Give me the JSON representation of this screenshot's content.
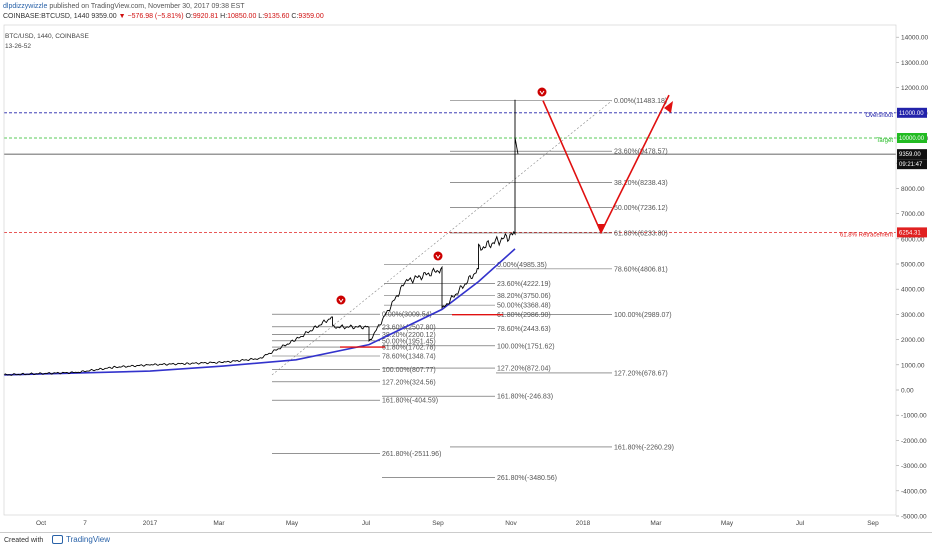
{
  "header": {
    "author": "dlpdizzywizzle",
    "published": "published on TradingView.com, November 30, 2017 09:38 EST",
    "symbol": "COINBASE:BTCUSD, 1440",
    "last": "9359.00",
    "change": "−576.98 (−5.81%)",
    "open_label": "O:",
    "open": "9920.81",
    "high_label": "H:",
    "high": "10850.00",
    "low_label": "L:",
    "low": "9135.60",
    "close_label": "C:",
    "close": "9359.00",
    "legend_title": "BTC/USD, 1440, COINBASE",
    "legend_sub": "13-26-52"
  },
  "footer": {
    "created": "Created with",
    "brand": "TradingView"
  },
  "colors": {
    "price": "#000000",
    "ma": "#3333cc",
    "arrow": "#e01010",
    "overshoot": "#2222aa",
    "target": "#22bb22",
    "retracement": "#e02020",
    "fib": "#555555",
    "up_mark": "#cc0000"
  },
  "chart_data": {
    "type": "line",
    "xlabel": "",
    "ylabel": "",
    "ylim": [
      -5000,
      15000
    ],
    "grid": false,
    "x_ticks": [
      "Oct",
      "7",
      "2017",
      "Mar",
      "May",
      "Jul",
      "Sep",
      "Nov",
      "2018",
      "Mar",
      "May",
      "Jul",
      "Sep"
    ],
    "y_ticks": [
      "14000.00",
      "13000.00",
      "12000.00",
      "11000.00",
      "10000.00",
      "9000.00",
      "8000.00",
      "7000.00",
      "6000.00",
      "5000.00",
      "4000.00",
      "3000.00",
      "2000.00",
      "1000.00",
      "0.00",
      "-1000.00",
      "-2000.00",
      "-3000.00",
      "-4000.00",
      "-5000.00"
    ],
    "series": [
      {
        "values_x": [
          "2016-09",
          "2016-11",
          "2016-12",
          "2017-01",
          "2017-02",
          "2017-03",
          "2017-04",
          "2017-05",
          "2017-06",
          "2017-06",
          "2017-07",
          "2017-07",
          "2017-08",
          "2017-09",
          "2017-09",
          "2017-10",
          "2017-10",
          "2017-11",
          "2017-11",
          "2017-11",
          "2017-11"
        ],
        "values": [
          600,
          700,
          900,
          1000,
          1050,
          1100,
          1250,
          2000,
          2900,
          2500,
          2500,
          1900,
          4300,
          4800,
          3200,
          4800,
          5600,
          6200,
          8000,
          11400,
          9359
        ]
      },
      {
        "values_x": [
          "2016-09",
          "2017-01",
          "2017-03",
          "2017-05",
          "2017-07",
          "2017-09",
          "2017-10",
          "2017-11"
        ],
        "values": [
          600,
          750,
          950,
          1200,
          1800,
          3200,
          4300,
          5600
        ]
      }
    ],
    "horizontal_levels": [
      {
        "value": 11000.0,
        "label": "Overshoot",
        "tag": "11000.00"
      },
      {
        "value": 10000.0,
        "label": "Target",
        "tag": "10000.00"
      },
      {
        "value": 9359.0,
        "label": "",
        "tag": "9359.00"
      },
      {
        "value": 6254.31,
        "label": "61.8% Retracement",
        "tag": "6254.31"
      }
    ],
    "current_time_tag": "09:21:47",
    "projection": [
      {
        "date": "2017-11-25",
        "value": 11483
      },
      {
        "date": "2018-01-25",
        "value": 6254
      },
      {
        "date": "2018-03-15",
        "value": 11700
      }
    ],
    "fib_labels": [
      "0.00%(11483.18)",
      "23.60%(9478.57)",
      "38.20%(8238.43)",
      "50.00%(7236.12)",
      "61.80%(6233.80)",
      "0.00%(4985.35)",
      "78.60%(4806.81)",
      "23.60%(4222.19)",
      "38.20%(3750.06)",
      "50.00%(3368.48)",
      "61.80%(2986.90)",
      "100.00%(2989.07)",
      "0.00%(3009.54)",
      "23.60%(2507.80)",
      "38.20%(2200.12)",
      "78.60%(2443.63)",
      "50.00%(1951.45)",
      "61.80%(1702.78)",
      "100.00%(1751.62)",
      "78.60%(1348.74)",
      "100.00%(807.77)",
      "127.20%(872.04)",
      "127.20%(678.67)",
      "127.20%(324.56)",
      "161.80%(-404.59)",
      "161.80%(-246.83)",
      "161.80%(-2260.29)",
      "261.80%(-2511.96)",
      "261.80%(-3480.56)"
    ]
  }
}
